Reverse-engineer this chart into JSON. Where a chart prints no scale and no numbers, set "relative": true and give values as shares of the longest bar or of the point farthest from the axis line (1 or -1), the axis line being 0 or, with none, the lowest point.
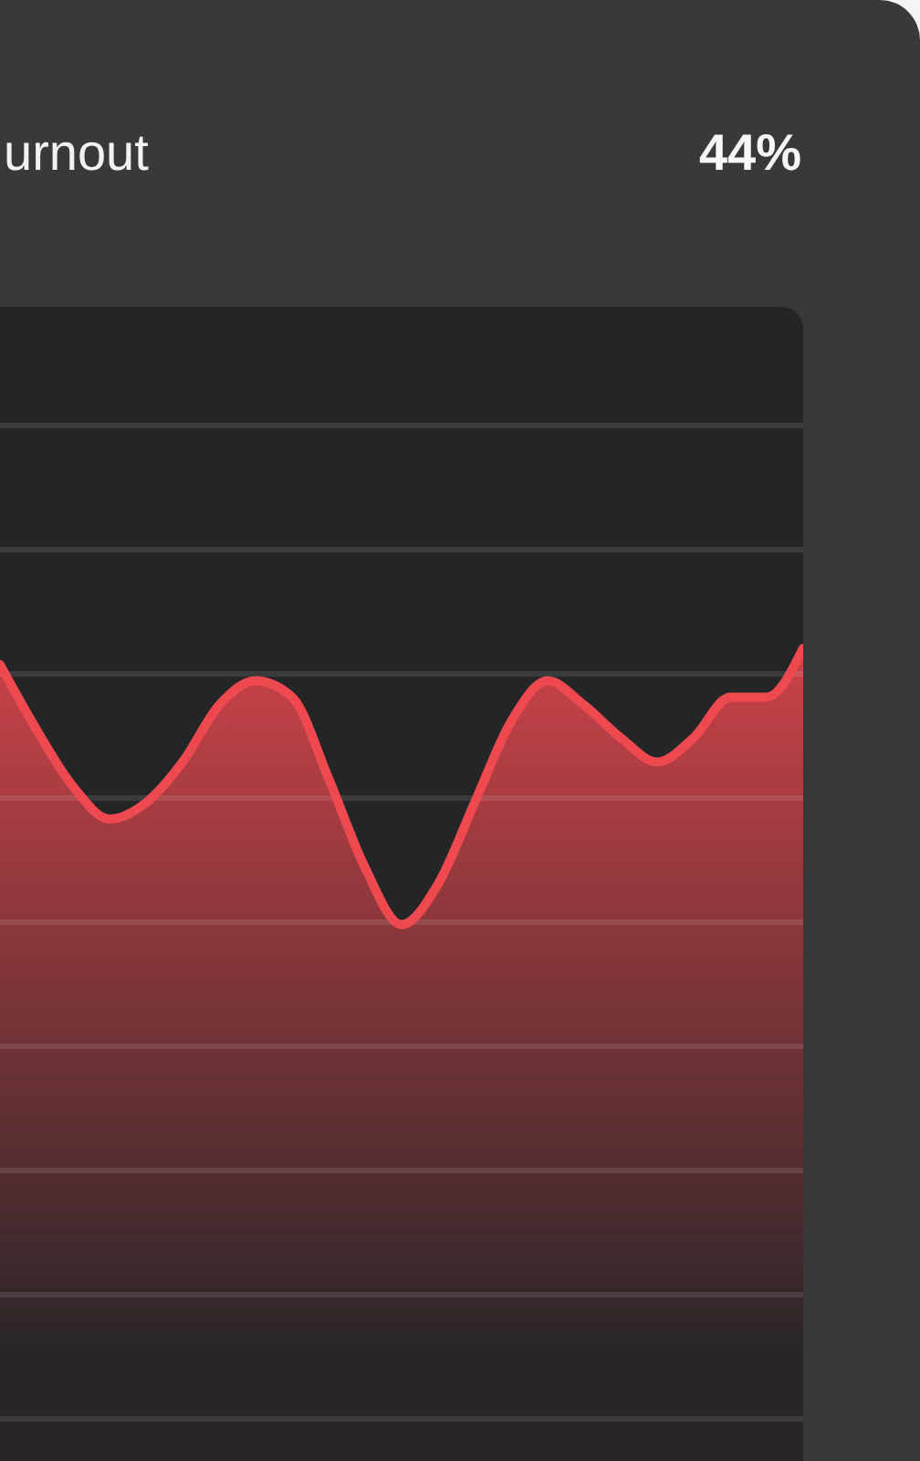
{
  "chart_data": {
    "type": "area",
    "title": "urnout",
    "annotations": [
      "44%"
    ],
    "categories": [
      null,
      null,
      null,
      null,
      null,
      null,
      null,
      null,
      null,
      null,
      null,
      null,
      null,
      null,
      null,
      null,
      null,
      null,
      null,
      null,
      null,
      null,
      null
    ],
    "series": [
      {
        "color": "#ef4950",
        "values": [
          0.98,
          0.9,
          0.83,
          0.79,
          0.81,
          0.86,
          0.93,
          0.96,
          0.94,
          0.84,
          0.73,
          0.66,
          0.71,
          0.81,
          0.91,
          0.96,
          0.93,
          0.89,
          0.86,
          0.89,
          0.94,
          0.94,
          1
        ]
      }
    ],
    "relative": true,
    "grid": "y"
  }
}
